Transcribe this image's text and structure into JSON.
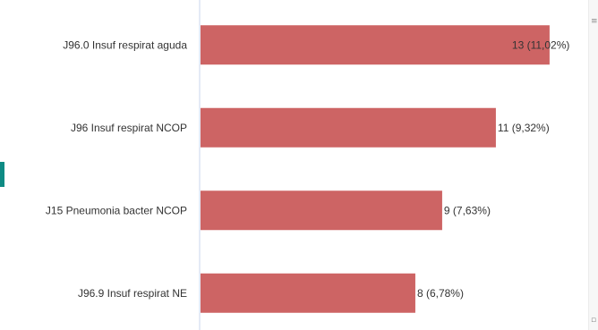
{
  "chart_data": {
    "type": "bar",
    "orientation": "horizontal",
    "categories": [
      "J96.0 Insuf respirat aguda",
      "J96 Insuf respirat NCOP",
      "J15 Pneumonia bacter NCOP",
      "J96.9 Insuf respirat NE"
    ],
    "values": [
      13,
      11,
      9,
      8
    ],
    "data_labels": [
      "13 (11,02%)",
      "11 (9,32%)",
      "9 (7,63%)",
      "8 (6,78%)"
    ],
    "xlim": [
      0,
      13.67
    ],
    "bar_color": "#cd6464",
    "axis_color": "#c9d4ee",
    "grid": false,
    "legend": "none"
  },
  "scrollbar": {
    "up_icon": "triangle-up-icon",
    "down_icon": "triangle-down-icon",
    "up_glyph": "≡",
    "down_glyph": "▫"
  }
}
